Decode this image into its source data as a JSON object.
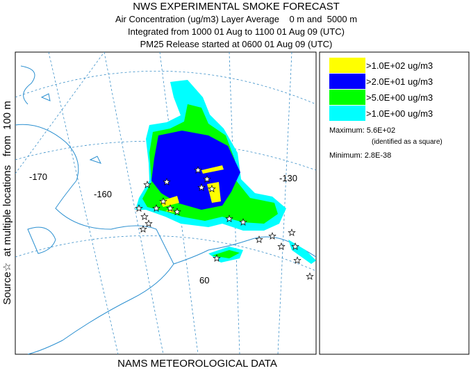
{
  "header": {
    "title": "NWS EXPERIMENTAL SMOKE FORECAST",
    "lines": [
      "Air Concentration (ug/m3) Layer Average    0 m and  5000 m",
      "Integrated from 1000 01 Aug to 1100 01 Aug 09 (UTC)",
      "PM25 Release started at 0600 01 Aug 09 (UTC)"
    ]
  },
  "side_label": "Source☆  at multiple locations   from  100 m",
  "footer": "NAMS METEOROLOGICAL DATA",
  "map": {
    "labels": [
      "-170",
      "-160",
      "-130",
      "60"
    ]
  },
  "legend": {
    "items": [
      {
        "label": ">1.0E+02 ug/m3",
        "color": "#ffff00"
      },
      {
        "label": ">2.0E+01 ug/m3",
        "color": "#0000ff"
      },
      {
        "label": ">5.0E+00 ug/m3",
        "color": "#00ff00"
      },
      {
        "label": ">1.0E+00 ug/m3",
        "color": "#00ffff"
      }
    ]
  },
  "stats": {
    "maximum": "Maximum: 5.6E+02",
    "maximum_note": "(identified as a square)",
    "minimum": "Minimum: 2.8E-38"
  }
}
